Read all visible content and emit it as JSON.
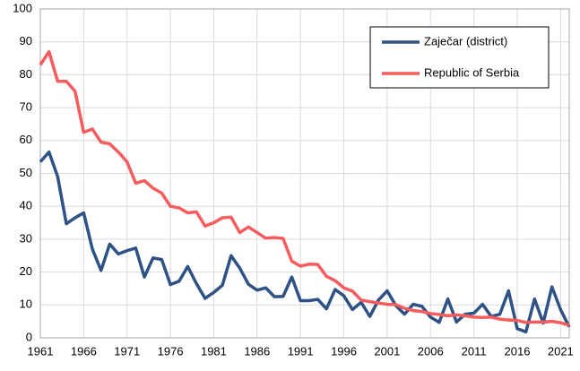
{
  "chart_data": {
    "type": "line",
    "x": [
      1961,
      1962,
      1963,
      1964,
      1965,
      1966,
      1967,
      1968,
      1969,
      1970,
      1971,
      1972,
      1973,
      1974,
      1975,
      1976,
      1977,
      1978,
      1979,
      1980,
      1981,
      1982,
      1983,
      1984,
      1985,
      1986,
      1987,
      1988,
      1989,
      1990,
      1991,
      1992,
      1993,
      1994,
      1995,
      1996,
      1997,
      1998,
      1999,
      2000,
      2001,
      2002,
      2003,
      2004,
      2005,
      2006,
      2007,
      2008,
      2009,
      2010,
      2011,
      2012,
      2013,
      2014,
      2015,
      2016,
      2017,
      2018,
      2019,
      2020,
      2021,
      2022
    ],
    "series": [
      {
        "name": "Zaječar (district)",
        "color": "#2e5283",
        "values": [
          53.5,
          56.5,
          49,
          34.7,
          36.5,
          38,
          27,
          20.5,
          28.5,
          25.5,
          26.5,
          27.3,
          18.5,
          24.3,
          23.8,
          16.2,
          17.2,
          21.7,
          16.5,
          12,
          13.8,
          16,
          25,
          21.2,
          16.3,
          14.5,
          15.2,
          12.5,
          12.6,
          18.5,
          11.3,
          11.3,
          11.7,
          8.8,
          14.7,
          12.8,
          8.6,
          10.8,
          6.5,
          11.5,
          14.3,
          9.8,
          7.2,
          10.2,
          9.6,
          6.3,
          4.7,
          11.8,
          4.8,
          7.2,
          7.5,
          10.2,
          6.5,
          7.2,
          14.3,
          2.8,
          1.8,
          11.8,
          4.5,
          15.5,
          8.6,
          3.3
        ]
      },
      {
        "name": "Republic of Serbia",
        "color": "#f65c5e",
        "values": [
          83,
          87,
          78,
          78,
          75,
          62.5,
          63.5,
          59.5,
          59,
          56.5,
          53.5,
          47,
          47.8,
          45.5,
          44,
          40,
          39.5,
          38,
          38.3,
          34,
          35,
          36.5,
          36.7,
          32,
          33.7,
          32,
          30.3,
          30.5,
          30.2,
          23.3,
          21.8,
          22.4,
          22.3,
          18.7,
          17.4,
          15.2,
          14.2,
          11.5,
          11,
          10.6,
          10.2,
          10.1,
          9,
          8.3,
          8,
          7.4,
          7.1,
          6.7,
          7,
          6.7,
          6.3,
          6.2,
          6.3,
          5.7,
          5.4,
          5.3,
          4.7,
          4.8,
          4.8,
          5,
          4.6,
          3.8
        ]
      }
    ],
    "xlim": [
      1961,
      2022
    ],
    "xticks": [
      1961,
      1966,
      1971,
      1976,
      1981,
      1986,
      1991,
      1996,
      2001,
      2006,
      2011,
      2016,
      2021
    ],
    "ylim": [
      0,
      100
    ],
    "yticks": [
      0,
      10,
      20,
      30,
      40,
      50,
      60,
      70,
      80,
      90,
      100
    ],
    "grid": true,
    "legend": "upper right"
  }
}
